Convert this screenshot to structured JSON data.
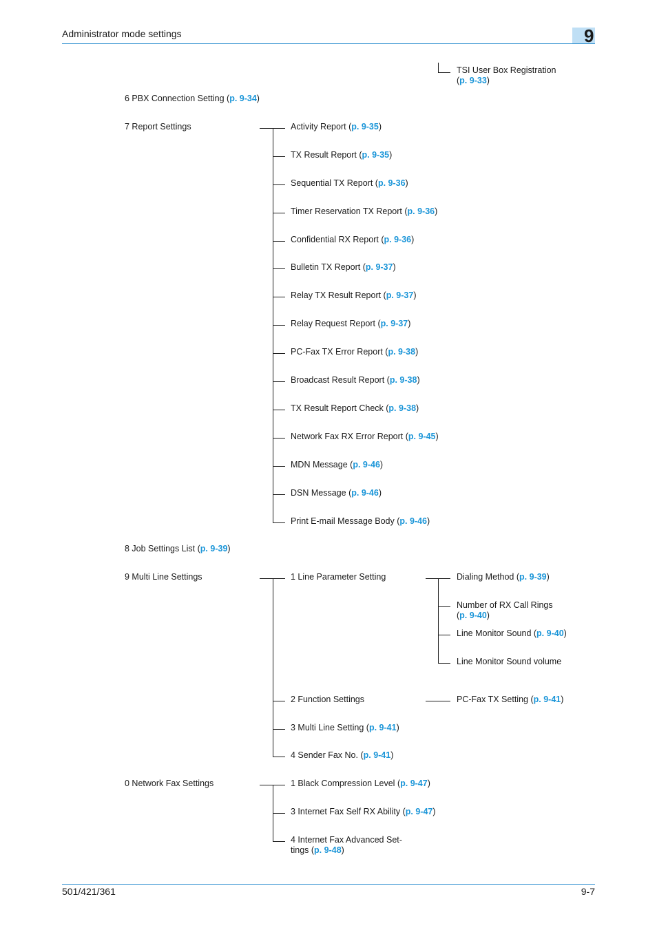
{
  "header": {
    "title": "Administrator mode settings",
    "chapter": "9"
  },
  "footer": {
    "model": "501/421/361",
    "page": "9-7"
  },
  "items": {
    "tsi": {
      "label": "TSI User Box Registration",
      "link": "p. 9-33"
    },
    "pbx": {
      "label": "6 PBX Connection Setting",
      "link": "p. 9-34"
    },
    "report_settings": {
      "label": "7 Report Settings"
    },
    "activity": {
      "label": "Activity Report",
      "link": "p. 9-35"
    },
    "tx_result": {
      "label": "TX Result Report",
      "link": "p. 9-35"
    },
    "sequential": {
      "label": "Sequential TX Report",
      "link": "p. 9-36"
    },
    "timer": {
      "label": "Timer Reservation TX Report",
      "link": "p. 9-36"
    },
    "confidential": {
      "label": "Confidential RX Report",
      "link": "p. 9-36"
    },
    "bulletin": {
      "label": "Bulletin TX Report",
      "link": "p. 9-37"
    },
    "relay_tx": {
      "label": "Relay TX Result Report",
      "link": "p. 9-37"
    },
    "relay_req": {
      "label": "Relay Request Report",
      "link": "p. 9-37"
    },
    "pcfax_err": {
      "label": "PC-Fax TX Error Report",
      "link": "p. 9-38"
    },
    "broadcast": {
      "label": "Broadcast Result Report",
      "link": "p. 9-38"
    },
    "tx_check": {
      "label": "TX Result Report Check",
      "link": "p. 9-38"
    },
    "netfax_err": {
      "label": "Network Fax RX Error Report",
      "link": "p. 9-45"
    },
    "mdn": {
      "label": "MDN Message",
      "link": "p. 9-46"
    },
    "dsn": {
      "label": "DSN Message",
      "link": "p. 9-46"
    },
    "print_email": {
      "label": "Print E-mail Message Body",
      "link": "p. 9-46"
    },
    "job_list": {
      "label": "8 Job Settings List",
      "link": "p. 9-39"
    },
    "multi_line": {
      "label": "9 Multi Line Settings"
    },
    "line_param": {
      "label": "1 Line Parameter Setting"
    },
    "dialing": {
      "label": "Dialing Method",
      "link": "p. 9-39"
    },
    "rx_rings": {
      "label": "Number of RX Call Rings",
      "link": "p. 9-40"
    },
    "monitor_sound": {
      "label": "Line Monitor Sound",
      "link": "p. 9-40"
    },
    "monitor_volume": {
      "label": "Line Monitor Sound volume"
    },
    "function": {
      "label": "2 Function Settings"
    },
    "pcfax_tx": {
      "label": "PC-Fax TX Setting",
      "link": "p. 9-41"
    },
    "multi_line_set": {
      "label": "3 Multi Line Setting",
      "link": "p. 9-41"
    },
    "sender_fax": {
      "label": "4 Sender Fax No.",
      "link": "p. 9-41"
    },
    "network_fax": {
      "label": "0 Network Fax Settings"
    },
    "black_comp": {
      "label": "1 Black Compression Level",
      "link": "p. 9-47"
    },
    "self_rx": {
      "label": "3 Internet Fax Self RX Ability",
      "link": "p. 9-47"
    },
    "advanced": {
      "label_line1": "4 Internet Fax Advanced Set-",
      "label_line2": "tings",
      "link": "p. 9-48"
    }
  }
}
